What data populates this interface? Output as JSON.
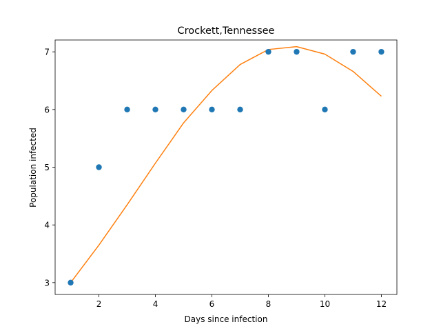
{
  "chart_data": {
    "type": "scatter",
    "title": "Crockett,Tennessee",
    "xlabel": "Days since infection",
    "ylabel": "Population infected",
    "xlim": [
      0.45,
      12.55
    ],
    "ylim": [
      2.795,
      7.205
    ],
    "xticks": [
      2,
      4,
      6,
      8,
      10,
      12
    ],
    "yticks": [
      3,
      4,
      5,
      6,
      7
    ],
    "grid": false,
    "legend": "none",
    "series": [
      {
        "kind": "scatter",
        "color": "#1f77b4",
        "x": [
          1,
          2,
          3,
          4,
          5,
          6,
          7,
          8,
          9,
          10,
          11,
          12
        ],
        "y": [
          3,
          5,
          6,
          6,
          6,
          6,
          6,
          7,
          7,
          6,
          7,
          7
        ]
      },
      {
        "kind": "line",
        "color": "#ff7f0e",
        "x": [
          1,
          2,
          3,
          4,
          5,
          6,
          7,
          8,
          9,
          10,
          11,
          12
        ],
        "y": [
          3.0,
          3.65,
          4.35,
          5.07,
          5.77,
          6.33,
          6.78,
          7.04,
          7.09,
          6.96,
          6.66,
          6.23
        ]
      }
    ]
  }
}
